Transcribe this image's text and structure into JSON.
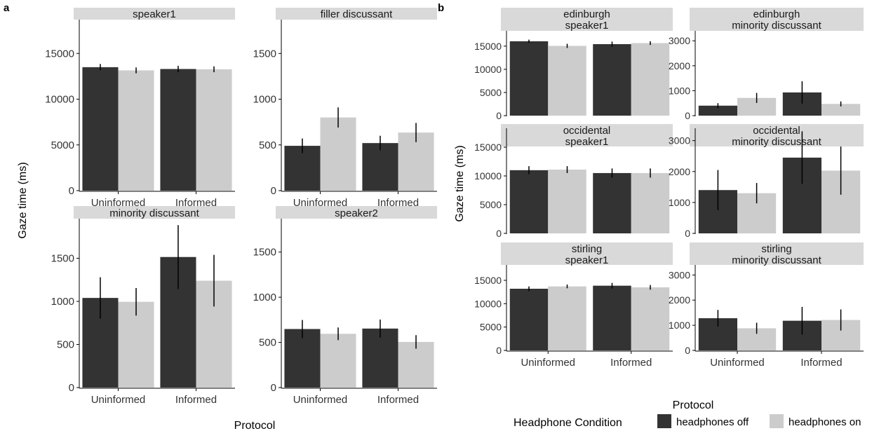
{
  "figure": {
    "panel_a_label": "a",
    "panel_b_label": "b",
    "ylabel": "Gaze time (ms)",
    "xlabel": "Protocol"
  },
  "legend": {
    "title": "Headphone Condition",
    "items": [
      {
        "label": "headphones off",
        "color": "#333333"
      },
      {
        "label": "headphones on",
        "color": "#cccccc"
      }
    ]
  },
  "colors": {
    "off": "#333333",
    "on": "#cccccc",
    "strip": "#d9d9d9"
  },
  "chart_data": [
    {
      "type": "bar",
      "facet": "a",
      "strip": [
        "speaker1"
      ],
      "categories": [
        "Uninformed",
        "Informed"
      ],
      "yticks": [
        0,
        5000,
        10000,
        15000
      ],
      "ylim": [
        0,
        18700
      ],
      "series": [
        {
          "name": "headphones off",
          "values": [
            13500,
            13300
          ],
          "err": [
            350,
            350
          ]
        },
        {
          "name": "headphones on",
          "values": [
            13150,
            13270
          ],
          "err": [
            320,
            320
          ]
        }
      ]
    },
    {
      "type": "bar",
      "facet": "a",
      "strip": [
        "filler  discussant"
      ],
      "categories": [
        "Uninformed",
        "Informed"
      ],
      "yticks": [
        0,
        500,
        1000,
        1500
      ],
      "ylim": [
        0,
        1870
      ],
      "series": [
        {
          "name": "headphones off",
          "values": [
            490,
            520
          ],
          "err": [
            80,
            80
          ]
        },
        {
          "name": "headphones on",
          "values": [
            800,
            635
          ],
          "err": [
            110,
            105
          ]
        }
      ]
    },
    {
      "type": "bar",
      "facet": "a",
      "strip": [
        "minority  discussant"
      ],
      "categories": [
        "Uninformed",
        "Informed"
      ],
      "yticks": [
        0,
        500,
        1000,
        1500
      ],
      "ylim": [
        0,
        1960
      ],
      "series": [
        {
          "name": "headphones off",
          "values": [
            1040,
            1515
          ],
          "err": [
            240,
            370
          ]
        },
        {
          "name": "headphones on",
          "values": [
            995,
            1240
          ],
          "err": [
            160,
            300
          ]
        }
      ]
    },
    {
      "type": "bar",
      "facet": "a",
      "strip": [
        "speaker2"
      ],
      "categories": [
        "Uninformed",
        "Informed"
      ],
      "yticks": [
        0,
        500,
        1000,
        1500
      ],
      "ylim": [
        0,
        1870
      ],
      "series": [
        {
          "name": "headphones off",
          "values": [
            648,
            653
          ],
          "err": [
            100,
            100
          ]
        },
        {
          "name": "headphones on",
          "values": [
            595,
            505
          ],
          "err": [
            70,
            75
          ]
        }
      ]
    },
    {
      "type": "bar",
      "facet": "b",
      "strip": [
        "edinburgh",
        "speaker1"
      ],
      "categories": [
        "Uninformed",
        "Informed"
      ],
      "yticks": [
        0,
        5000,
        10000,
        15000
      ],
      "ylim": [
        0,
        18300
      ],
      "series": [
        {
          "name": "headphones off",
          "values": [
            16050,
            15430
          ],
          "err": [
            350,
            550
          ]
        },
        {
          "name": "headphones on",
          "values": [
            15050,
            15650
          ],
          "err": [
            450,
            400
          ]
        }
      ]
    },
    {
      "type": "bar",
      "facet": "b",
      "strip": [
        "edinburgh",
        "minority  discussant"
      ],
      "categories": [
        "Uninformed",
        "Informed"
      ],
      "yticks": [
        0,
        1000,
        2000,
        3000
      ],
      "ylim": [
        0,
        3400
      ],
      "series": [
        {
          "name": "headphones off",
          "values": [
            400,
            930
          ],
          "err": [
            100,
            450
          ]
        },
        {
          "name": "headphones on",
          "values": [
            710,
            470
          ],
          "err": [
            200,
            100
          ]
        }
      ]
    },
    {
      "type": "bar",
      "facet": "b",
      "strip": [
        "occidental",
        "speaker1"
      ],
      "categories": [
        "Uninformed",
        "Informed"
      ],
      "yticks": [
        0,
        5000,
        10000,
        15000
      ],
      "ylim": [
        0,
        18300
      ],
      "series": [
        {
          "name": "headphones off",
          "values": [
            11000,
            10500
          ],
          "err": [
            700,
            800
          ]
        },
        {
          "name": "headphones on",
          "values": [
            11100,
            10500
          ],
          "err": [
            600,
            800
          ]
        }
      ]
    },
    {
      "type": "bar",
      "facet": "b",
      "strip": [
        "occidental",
        "minority  discussant"
      ],
      "categories": [
        "Uninformed",
        "Informed"
      ],
      "yticks": [
        0,
        1000,
        2000,
        3000
      ],
      "ylim": [
        0,
        3400
      ],
      "series": [
        {
          "name": "headphones off",
          "values": [
            1400,
            2450
          ],
          "err": [
            650,
            850
          ]
        },
        {
          "name": "headphones on",
          "values": [
            1300,
            2030
          ],
          "err": [
            330,
            780
          ]
        }
      ]
    },
    {
      "type": "bar",
      "facet": "b",
      "strip": [
        "stirling",
        "speaker1"
      ],
      "categories": [
        "Uninformed",
        "Informed"
      ],
      "yticks": [
        0,
        5000,
        10000,
        15000
      ],
      "ylim": [
        0,
        18300
      ],
      "series": [
        {
          "name": "headphones off",
          "values": [
            13200,
            13850
          ],
          "err": [
            500,
            600
          ]
        },
        {
          "name": "headphones on",
          "values": [
            13700,
            13500
          ],
          "err": [
            400,
            500
          ]
        }
      ]
    },
    {
      "type": "bar",
      "facet": "b",
      "strip": [
        "stirling",
        "minority  discussant"
      ],
      "categories": [
        "Uninformed",
        "Informed"
      ],
      "yticks": [
        0,
        1000,
        2000,
        3000
      ],
      "ylim": [
        0,
        3400
      ],
      "series": [
        {
          "name": "headphones off",
          "values": [
            1280,
            1180
          ],
          "err": [
            330,
            550
          ]
        },
        {
          "name": "headphones on",
          "values": [
            880,
            1210
          ],
          "err": [
            220,
            420
          ]
        }
      ]
    }
  ]
}
